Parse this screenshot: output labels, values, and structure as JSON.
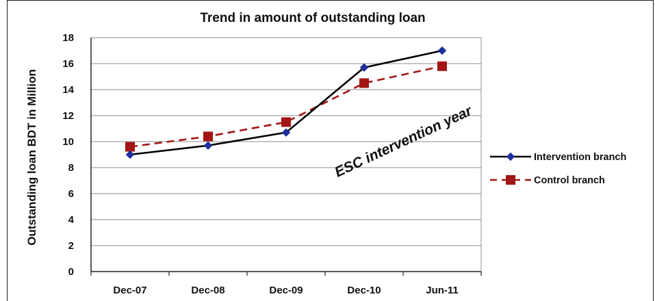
{
  "chart_data": {
    "type": "line",
    "title": "Trend in amount of outstanding loan",
    "xlabel": "",
    "ylabel": "Outstanding loan BDT in Million",
    "categories": [
      "Dec-07",
      "Dec-08",
      "Dec-09",
      "Dec-10",
      "Jun-11"
    ],
    "ylim": [
      0,
      18
    ],
    "yticks": [
      "0",
      "2",
      "4",
      "6",
      "8",
      "10",
      "12",
      "14",
      "16",
      "18"
    ],
    "grid": true,
    "legend_position": "right",
    "annotation": "ESC intervention year",
    "series": [
      {
        "name": "Intervention branch",
        "values": [
          9.0,
          9.7,
          10.7,
          15.7,
          17.0
        ],
        "color": "#000000",
        "marker": "diamond",
        "marker_color": "#1f2f9e",
        "line_style": "solid"
      },
      {
        "name": "Control branch",
        "values": [
          9.6,
          10.4,
          11.5,
          14.5,
          15.8
        ],
        "color": "#a31515",
        "marker": "square",
        "marker_color": "#a31515",
        "line_style": "dashed"
      }
    ]
  }
}
